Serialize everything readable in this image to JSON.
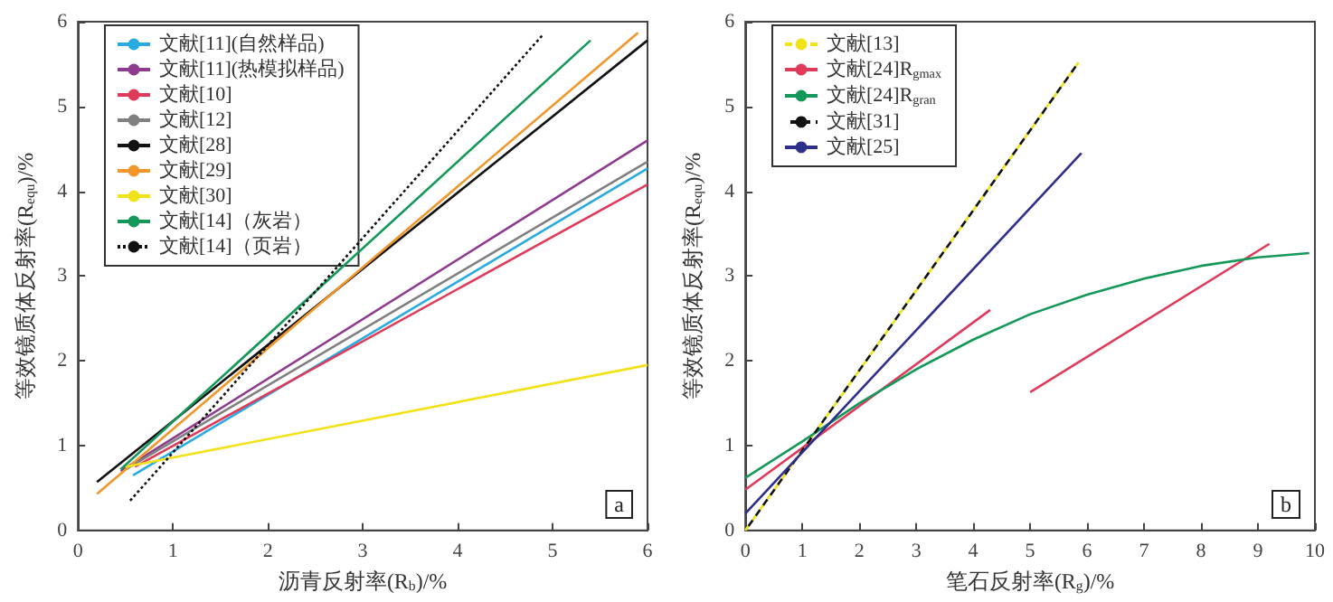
{
  "chart_data": [
    {
      "type": "line",
      "xlabel": "沥青反射率(R$_{b}$)/%",
      "ylabel": "等效镜质体反射率(R$_{equ}$)/%",
      "xlim": [
        0,
        6
      ],
      "xticks": [
        0,
        1,
        2,
        3,
        4,
        5,
        6
      ],
      "ylim": [
        0,
        6
      ],
      "yticks": [
        0,
        1,
        2,
        3,
        4,
        5,
        6
      ],
      "grid": false,
      "legend": "top left",
      "marker": "none",
      "annotations": [
        "a"
      ],
      "series": [
        {
          "name": "文献[11](自然样品)",
          "color": "#29aae1",
          "line_style": "solid",
          "x": [
            0.58,
            6
          ],
          "values": [
            0.65,
            4.27
          ]
        },
        {
          "name": "文献[11](热模拟样品)",
          "color": "#8e3b8f",
          "line_style": "solid",
          "x": [
            0.45,
            6
          ],
          "values": [
            0.7,
            4.6
          ]
        },
        {
          "name": "文献[10]",
          "color": "#e03a5a",
          "line_style": "solid",
          "x": [
            0.6,
            6
          ],
          "values": [
            0.75,
            4.08
          ]
        },
        {
          "name": "文献[12]",
          "color": "#808080",
          "line_style": "solid",
          "x": [
            0.5,
            6
          ],
          "values": [
            0.72,
            4.35
          ]
        },
        {
          "name": "文献[28]",
          "color": "#111111",
          "line_style": "solid",
          "x": [
            0.2,
            6
          ],
          "values": [
            0.57,
            5.78
          ]
        },
        {
          "name": "文献[29]",
          "color": "#f0962a",
          "line_style": "solid",
          "x": [
            0.2,
            5.9
          ],
          "values": [
            0.43,
            5.87
          ]
        },
        {
          "name": "文献[30]",
          "color": "#f2e21a",
          "line_style": "solid",
          "x": [
            0.5,
            6
          ],
          "values": [
            0.75,
            1.95
          ]
        },
        {
          "name": "文献[14]（灰岩）",
          "color": "#14985a",
          "line_style": "solid",
          "x": [
            0.45,
            5.4
          ],
          "values": [
            0.72,
            5.78
          ]
        },
        {
          "name": "文献[14]（页岩）",
          "color": "#111111",
          "line_style": "dotted",
          "x": [
            0.55,
            4.9
          ],
          "values": [
            0.35,
            5.85
          ]
        }
      ]
    },
    {
      "type": "line",
      "xlabel": "笔石反射率(R$_{g}$)/%",
      "ylabel": "等效镜质体反射率(R$_{equ}$)/%",
      "xlim": [
        0,
        10
      ],
      "xticks": [
        0,
        1,
        2,
        3,
        4,
        5,
        6,
        7,
        8,
        9,
        10
      ],
      "ylim": [
        0,
        6
      ],
      "yticks": [
        0,
        1,
        2,
        3,
        4,
        5,
        6
      ],
      "grid": false,
      "legend": "top left",
      "marker": "none",
      "annotations": [
        "b"
      ],
      "series": [
        {
          "name": "文献[13]",
          "color": "#f2e21a",
          "line_style": "dashed",
          "x": [
            0,
            5.85
          ],
          "values": [
            0,
            5.52
          ]
        },
        {
          "name": "文献[24]R$_{gmax}$",
          "color": "#e03a5a",
          "line_style": "solid",
          "x": [
            0,
            4.3,
            4.65,
            5,
            9.2
          ],
          "values": [
            0.48,
            2.6,
            null,
            1.63,
            3.38
          ]
        },
        {
          "name": "文献[24]R$_{gran}$",
          "color": "#14985a",
          "line_style": "solid",
          "x": [
            0,
            1,
            2,
            3,
            4,
            5,
            6,
            7,
            8,
            9,
            9.9
          ],
          "values": [
            0.62,
            1.05,
            1.5,
            1.9,
            2.25,
            2.55,
            2.78,
            2.97,
            3.12,
            3.22,
            3.27
          ]
        },
        {
          "name": "文献[31]",
          "color": "#111111",
          "line_style": "dashed",
          "x": [
            0,
            5.85
          ],
          "values": [
            0,
            5.52
          ]
        },
        {
          "name": "文献[25]",
          "color": "#2e2e8c",
          "line_style": "solid",
          "x": [
            0,
            5.9
          ],
          "values": [
            0.2,
            4.45
          ]
        }
      ]
    }
  ]
}
